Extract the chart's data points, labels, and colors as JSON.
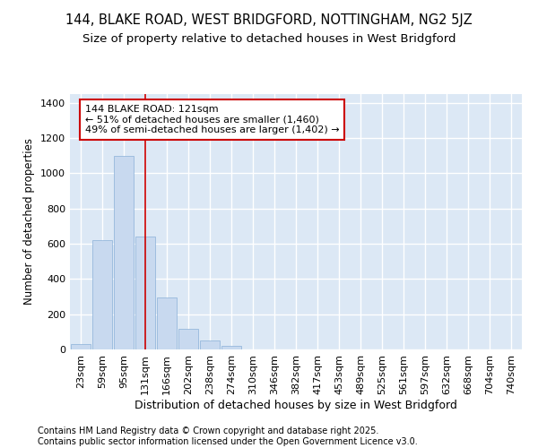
{
  "title_line1": "144, BLAKE ROAD, WEST BRIDGFORD, NOTTINGHAM, NG2 5JZ",
  "title_line2": "Size of property relative to detached houses in West Bridgford",
  "xlabel": "Distribution of detached houses by size in West Bridgford",
  "ylabel": "Number of detached properties",
  "categories": [
    "23sqm",
    "59sqm",
    "95sqm",
    "131sqm",
    "166sqm",
    "202sqm",
    "238sqm",
    "274sqm",
    "310sqm",
    "346sqm",
    "382sqm",
    "417sqm",
    "453sqm",
    "489sqm",
    "525sqm",
    "561sqm",
    "597sqm",
    "632sqm",
    "668sqm",
    "704sqm",
    "740sqm"
  ],
  "values": [
    30,
    620,
    1100,
    640,
    295,
    115,
    50,
    20,
    0,
    0,
    0,
    0,
    0,
    0,
    0,
    0,
    0,
    0,
    0,
    0,
    0
  ],
  "bar_color": "#c8d9ef",
  "bar_edge_color": "#8ab0d8",
  "background_color": "#dce8f5",
  "grid_color": "#ffffff",
  "annotation_text": "144 BLAKE ROAD: 121sqm\n← 51% of detached houses are smaller (1,460)\n49% of semi-detached houses are larger (1,402) →",
  "vline_x": 3,
  "vline_color": "#cc0000",
  "annotation_box_edge_color": "#cc0000",
  "ylim": [
    0,
    1450
  ],
  "yticks": [
    0,
    200,
    400,
    600,
    800,
    1000,
    1200,
    1400
  ],
  "title_fontsize": 10.5,
  "subtitle_fontsize": 9.5,
  "xlabel_fontsize": 9,
  "ylabel_fontsize": 8.5,
  "tick_fontsize": 8,
  "annotation_fontsize": 8,
  "footer_text": "Contains HM Land Registry data © Crown copyright and database right 2025.\nContains public sector information licensed under the Open Government Licence v3.0.",
  "footer_fontsize": 7
}
